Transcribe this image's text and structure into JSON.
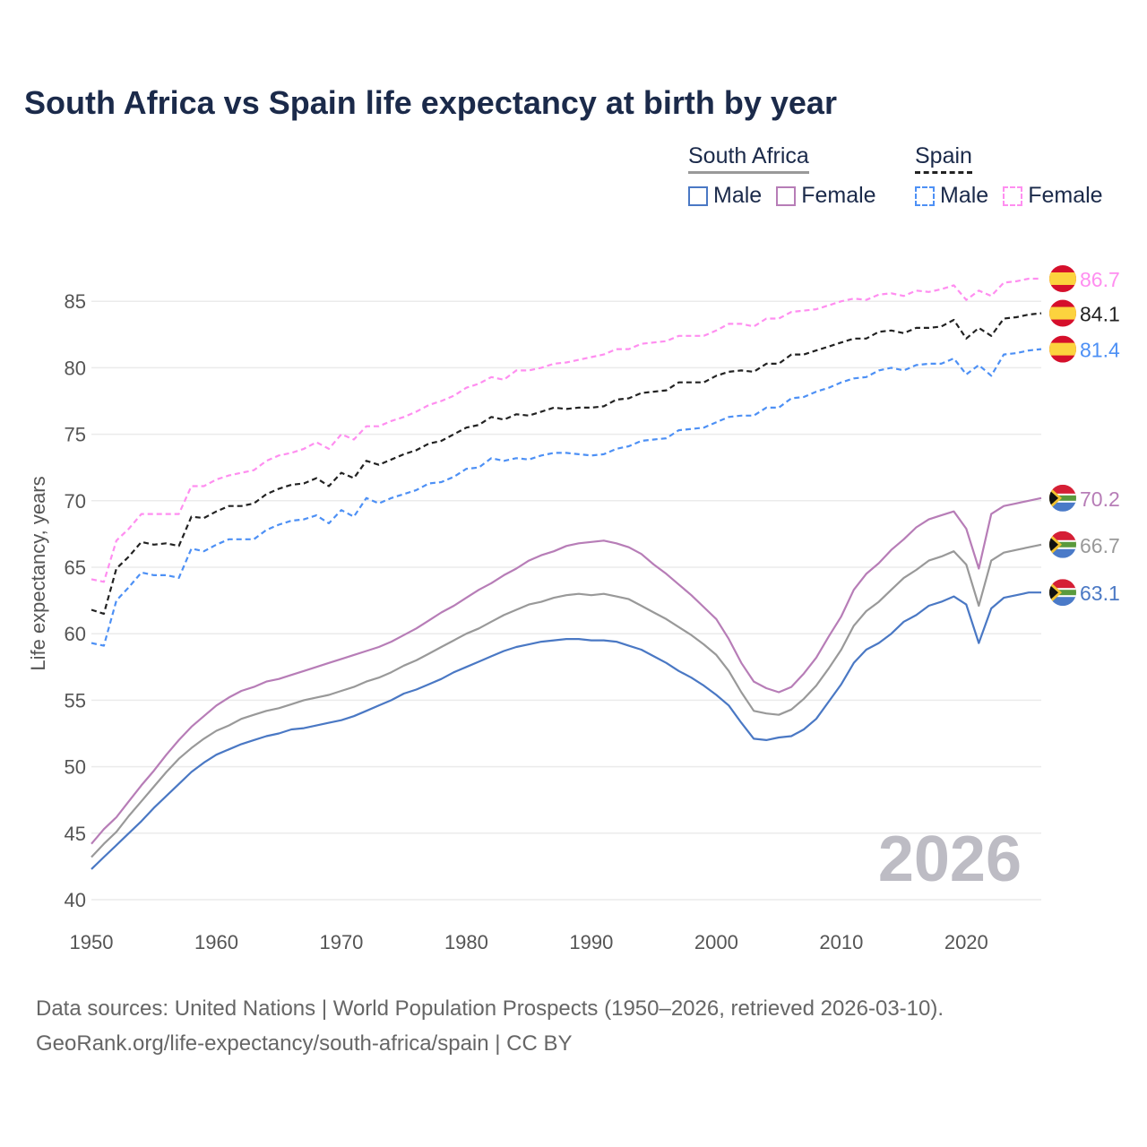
{
  "title": "South Africa vs Spain life expectancy at birth by year",
  "legend": {
    "groups": [
      {
        "name": "South Africa",
        "items": [
          "Male",
          "Female"
        ]
      },
      {
        "name": "Spain",
        "items": [
          "Male",
          "Female"
        ]
      }
    ]
  },
  "year_watermark": "2026",
  "footer": {
    "line1": "Data sources: United Nations | World Population Prospects (1950–2026, retrieved 2026-03-10).",
    "line2": "GeoRank.org/life-expectancy/south-africa/spain | CC BY"
  },
  "chart_data": {
    "type": "line",
    "title": "South Africa vs Spain life expectancy at birth by year",
    "xlabel": "",
    "ylabel": "Life expectancy, years",
    "xlim": [
      1950,
      2026
    ],
    "ylim": [
      40,
      87
    ],
    "xticks": [
      1950,
      1960,
      1970,
      1980,
      1990,
      2000,
      2010,
      2020
    ],
    "yticks": [
      40,
      45,
      50,
      55,
      60,
      65,
      70,
      75,
      80,
      85
    ],
    "grid": true,
    "legend_position": "top-right",
    "x_start": 1950,
    "series": [
      {
        "name": "Spain Female",
        "country": "Spain",
        "color": "#ff8ef0",
        "dash": true,
        "end_label": "86.7",
        "values": [
          64.1,
          63.9,
          67.0,
          67.9,
          69.0,
          69.0,
          69.0,
          69.0,
          71.1,
          71.1,
          71.6,
          71.9,
          72.1,
          72.3,
          73.0,
          73.4,
          73.6,
          73.9,
          74.4,
          73.9,
          75.0,
          74.6,
          75.6,
          75.6,
          76.0,
          76.3,
          76.7,
          77.2,
          77.5,
          77.9,
          78.5,
          78.8,
          79.3,
          79.1,
          79.8,
          79.8,
          80.0,
          80.3,
          80.4,
          80.6,
          80.8,
          81.0,
          81.4,
          81.4,
          81.8,
          81.9,
          82.0,
          82.4,
          82.4,
          82.4,
          82.8,
          83.3,
          83.3,
          83.1,
          83.7,
          83.7,
          84.2,
          84.3,
          84.4,
          84.7,
          85.0,
          85.2,
          85.1,
          85.5,
          85.6,
          85.4,
          85.8,
          85.7,
          85.9,
          86.2,
          85.1,
          85.8,
          85.4,
          86.4,
          86.5,
          86.7,
          86.7
        ]
      },
      {
        "name": "Spain",
        "country": "Spain",
        "color": "#222222",
        "dash": true,
        "end_label": "84.1",
        "values": [
          61.8,
          61.5,
          64.9,
          65.8,
          66.9,
          66.7,
          66.8,
          66.6,
          68.8,
          68.7,
          69.2,
          69.6,
          69.6,
          69.8,
          70.5,
          70.9,
          71.2,
          71.3,
          71.7,
          71.1,
          72.1,
          71.7,
          73.0,
          72.7,
          73.1,
          73.5,
          73.8,
          74.3,
          74.5,
          75.0,
          75.5,
          75.7,
          76.3,
          76.1,
          76.5,
          76.4,
          76.7,
          77.0,
          76.9,
          77.0,
          77.0,
          77.1,
          77.6,
          77.7,
          78.1,
          78.2,
          78.3,
          78.9,
          78.9,
          78.9,
          79.4,
          79.7,
          79.8,
          79.7,
          80.3,
          80.3,
          81.0,
          81.0,
          81.3,
          81.6,
          81.9,
          82.2,
          82.2,
          82.7,
          82.8,
          82.6,
          83.0,
          83.0,
          83.1,
          83.6,
          82.2,
          83.0,
          82.4,
          83.7,
          83.8,
          84.0,
          84.1
        ]
      },
      {
        "name": "Spain Male",
        "country": "Spain",
        "color": "#4d90f5",
        "dash": true,
        "end_label": "81.4",
        "values": [
          59.3,
          59.1,
          62.5,
          63.5,
          64.6,
          64.4,
          64.4,
          64.2,
          66.4,
          66.2,
          66.7,
          67.1,
          67.1,
          67.1,
          67.8,
          68.2,
          68.5,
          68.6,
          68.9,
          68.3,
          69.3,
          68.8,
          70.2,
          69.8,
          70.2,
          70.5,
          70.8,
          71.3,
          71.4,
          71.8,
          72.4,
          72.5,
          73.2,
          73.0,
          73.2,
          73.1,
          73.4,
          73.6,
          73.6,
          73.5,
          73.4,
          73.5,
          73.9,
          74.1,
          74.5,
          74.6,
          74.7,
          75.3,
          75.4,
          75.5,
          75.9,
          76.3,
          76.4,
          76.4,
          77.0,
          77.0,
          77.7,
          77.8,
          78.2,
          78.5,
          78.9,
          79.2,
          79.3,
          79.8,
          80.0,
          79.8,
          80.2,
          80.3,
          80.3,
          80.7,
          79.5,
          80.2,
          79.4,
          81.0,
          81.1,
          81.3,
          81.4
        ]
      },
      {
        "name": "South Africa Female",
        "country": "South Africa",
        "color": "#b77db7",
        "dash": false,
        "end_label": "70.2",
        "values": [
          44.2,
          45.3,
          46.2,
          47.4,
          48.6,
          49.7,
          50.9,
          52.0,
          53.0,
          53.8,
          54.6,
          55.2,
          55.7,
          56.0,
          56.4,
          56.6,
          56.9,
          57.2,
          57.5,
          57.8,
          58.1,
          58.4,
          58.7,
          59.0,
          59.4,
          59.9,
          60.4,
          61.0,
          61.6,
          62.1,
          62.7,
          63.3,
          63.8,
          64.4,
          64.9,
          65.5,
          65.9,
          66.2,
          66.6,
          66.8,
          66.9,
          67.0,
          66.8,
          66.5,
          66.0,
          65.2,
          64.5,
          63.7,
          62.9,
          62.0,
          61.1,
          59.6,
          57.8,
          56.4,
          55.9,
          55.6,
          56.0,
          57.0,
          58.2,
          59.8,
          61.3,
          63.3,
          64.5,
          65.3,
          66.3,
          67.1,
          68.0,
          68.6,
          68.9,
          69.2,
          67.9,
          64.9,
          69.0,
          69.6,
          69.8,
          70.0,
          70.2
        ]
      },
      {
        "name": "South Africa",
        "country": "South Africa",
        "color": "#999999",
        "dash": false,
        "end_label": "66.7",
        "values": [
          43.2,
          44.2,
          45.1,
          46.3,
          47.4,
          48.5,
          49.6,
          50.6,
          51.4,
          52.1,
          52.7,
          53.1,
          53.6,
          53.9,
          54.2,
          54.4,
          54.7,
          55.0,
          55.2,
          55.4,
          55.7,
          56.0,
          56.4,
          56.7,
          57.1,
          57.6,
          58.0,
          58.5,
          59.0,
          59.5,
          60.0,
          60.4,
          60.9,
          61.4,
          61.8,
          62.2,
          62.4,
          62.7,
          62.9,
          63.0,
          62.9,
          63.0,
          62.8,
          62.6,
          62.1,
          61.6,
          61.1,
          60.5,
          59.9,
          59.2,
          58.4,
          57.2,
          55.6,
          54.2,
          54.0,
          53.9,
          54.3,
          55.1,
          56.1,
          57.4,
          58.8,
          60.6,
          61.7,
          62.4,
          63.3,
          64.2,
          64.8,
          65.5,
          65.8,
          66.2,
          65.2,
          62.1,
          65.5,
          66.1,
          66.3,
          66.5,
          66.7
        ]
      },
      {
        "name": "South Africa Male",
        "country": "South Africa",
        "color": "#4a78c4",
        "dash": false,
        "end_label": "63.1",
        "values": [
          42.3,
          43.2,
          44.1,
          45.0,
          45.9,
          46.9,
          47.8,
          48.7,
          49.6,
          50.3,
          50.9,
          51.3,
          51.7,
          52.0,
          52.3,
          52.5,
          52.8,
          52.9,
          53.1,
          53.3,
          53.5,
          53.8,
          54.2,
          54.6,
          55.0,
          55.5,
          55.8,
          56.2,
          56.6,
          57.1,
          57.5,
          57.9,
          58.3,
          58.7,
          59.0,
          59.2,
          59.4,
          59.5,
          59.6,
          59.6,
          59.5,
          59.5,
          59.4,
          59.1,
          58.8,
          58.3,
          57.8,
          57.2,
          56.7,
          56.1,
          55.4,
          54.6,
          53.3,
          52.1,
          52.0,
          52.2,
          52.3,
          52.8,
          53.6,
          54.9,
          56.2,
          57.8,
          58.8,
          59.3,
          60.0,
          60.9,
          61.4,
          62.1,
          62.4,
          62.8,
          62.2,
          59.3,
          61.9,
          62.7,
          62.9,
          63.1,
          63.1
        ]
      }
    ]
  }
}
